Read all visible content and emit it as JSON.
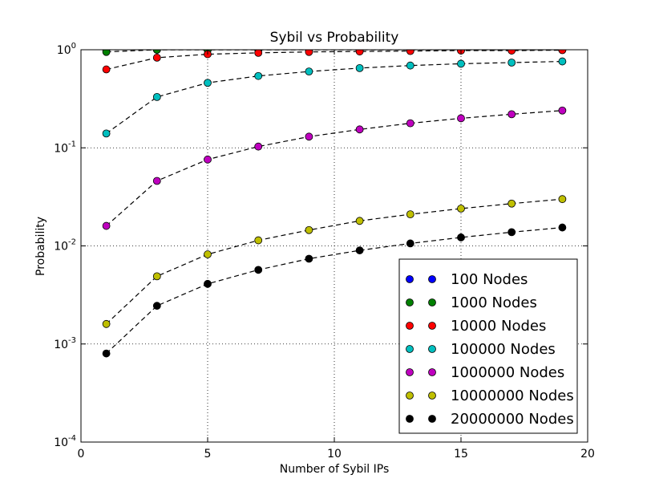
{
  "chart_data": {
    "type": "scatter",
    "title": "Sybil vs Probability",
    "xlabel": "Number of Sybil IPs",
    "ylabel": "Probability",
    "xlim": [
      0,
      20
    ],
    "ylim": [
      0.0001,
      1
    ],
    "yscale": "log",
    "grid": true,
    "legend_position": "bottom-right",
    "x_ticks": [
      {
        "value": 0,
        "label": "0"
      },
      {
        "value": 5,
        "label": "5"
      },
      {
        "value": 10,
        "label": "10"
      },
      {
        "value": 15,
        "label": "15"
      },
      {
        "value": 20,
        "label": "20"
      }
    ],
    "y_ticks": [
      {
        "value": 1,
        "base": "10",
        "exp": "0"
      },
      {
        "value": 0.1,
        "base": "10",
        "exp": "-1"
      },
      {
        "value": 0.01,
        "base": "10",
        "exp": "-2"
      },
      {
        "value": 0.001,
        "base": "10",
        "exp": "-3"
      },
      {
        "value": 0.0001,
        "base": "10",
        "exp": "-4"
      }
    ],
    "x": [
      1,
      3,
      5,
      7,
      9,
      11,
      13,
      15,
      17,
      19
    ],
    "series": [
      {
        "name": "100 Nodes",
        "color": "#0000ff",
        "values": [
          1,
          1,
          1,
          1,
          1,
          1,
          1,
          1,
          1,
          1
        ]
      },
      {
        "name": "1000 Nodes",
        "color": "#008000",
        "values": [
          0.95,
          1,
          1,
          1,
          1,
          1,
          1,
          1,
          1,
          1
        ]
      },
      {
        "name": "10000 Nodes",
        "color": "#ff0000",
        "values": [
          0.63,
          0.83,
          0.9,
          0.93,
          0.95,
          0.96,
          0.97,
          0.98,
          0.98,
          0.99
        ]
      },
      {
        "name": "100000 Nodes",
        "color": "#00bfbf",
        "values": [
          0.14,
          0.33,
          0.46,
          0.54,
          0.6,
          0.65,
          0.69,
          0.72,
          0.74,
          0.76
        ]
      },
      {
        "name": "1000000 Nodes",
        "color": "#bf00bf",
        "values": [
          0.016,
          0.046,
          0.076,
          0.103,
          0.13,
          0.154,
          0.178,
          0.2,
          0.22,
          0.24
        ]
      },
      {
        "name": "10000000 Nodes",
        "color": "#bfbf00",
        "values": [
          0.0016,
          0.0049,
          0.0082,
          0.0114,
          0.0145,
          0.018,
          0.021,
          0.024,
          0.027,
          0.03
        ]
      },
      {
        "name": "20000000 Nodes",
        "color": "#000000",
        "values": [
          0.0008,
          0.00245,
          0.0041,
          0.0057,
          0.0074,
          0.009,
          0.0106,
          0.0122,
          0.0138,
          0.0154
        ]
      }
    ]
  }
}
